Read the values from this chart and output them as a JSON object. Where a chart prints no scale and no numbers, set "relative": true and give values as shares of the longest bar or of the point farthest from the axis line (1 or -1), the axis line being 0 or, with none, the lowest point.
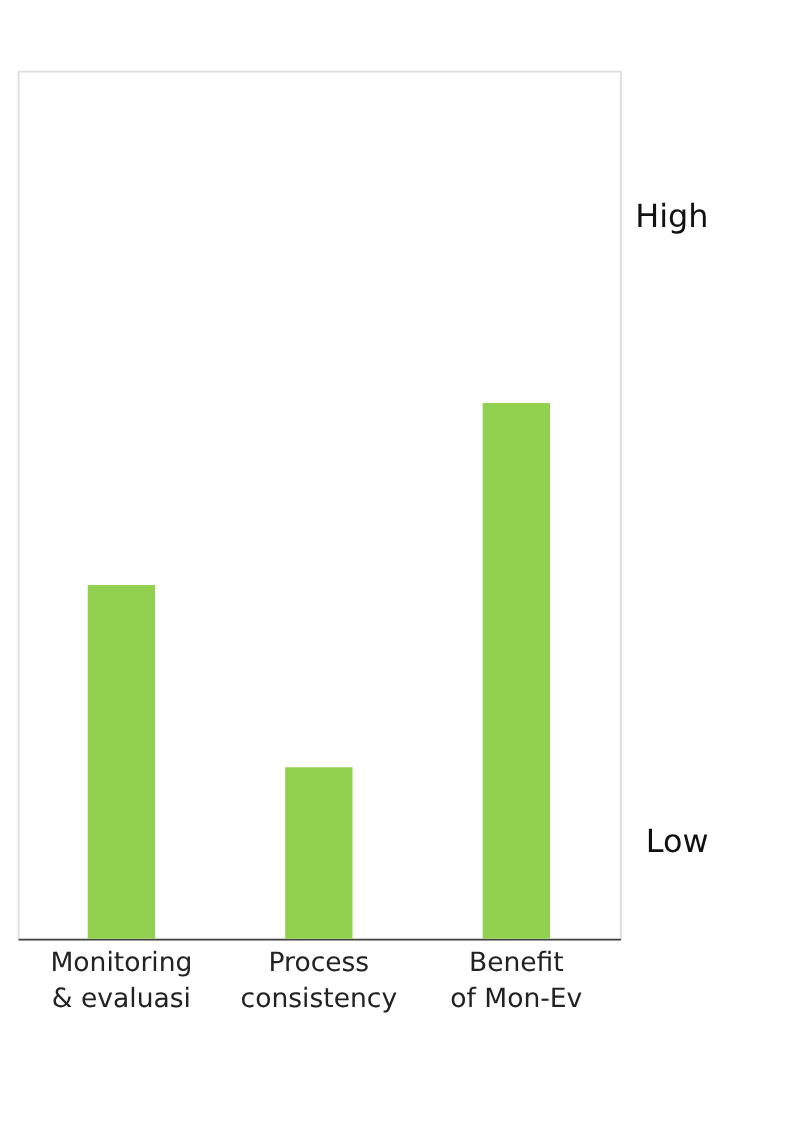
{
  "chart_data": {
    "type": "bar",
    "relative": true,
    "categories": [
      "Monitoring & evaluasi",
      "Process consistency",
      "Benefit of Mon-Ev"
    ],
    "values": [
      0.66,
      0.32,
      1.0
    ],
    "color": "#92d050",
    "annotations": [
      "High",
      "Low"
    ]
  }
}
